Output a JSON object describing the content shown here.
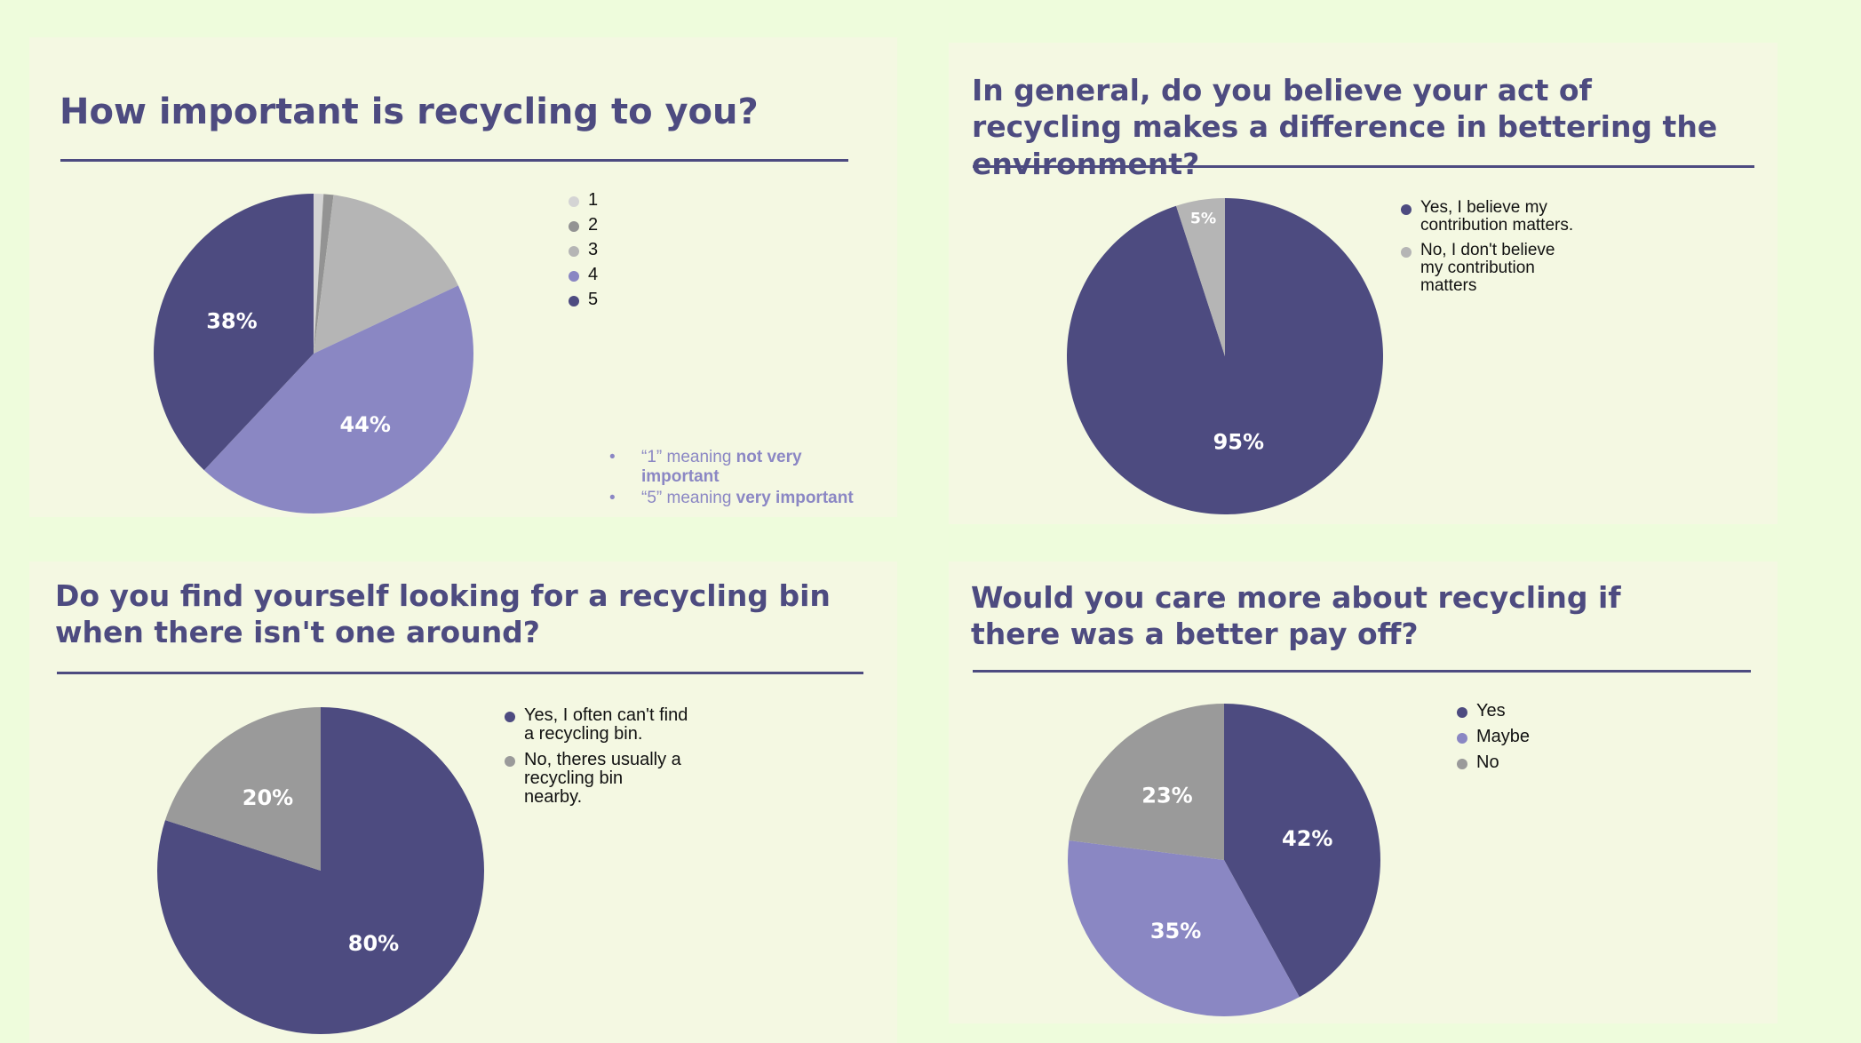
{
  "colors": {
    "dark_purple": "#4d4b80",
    "light_purple": "#8a87c3",
    "gray": "#9a9a9a",
    "light_gray": "#b5b5b5",
    "pale_gray": "#d4d4d4",
    "mid_gray": "#939393",
    "panel_bg": "#f4f8e2",
    "page_bg": "#eefcdc"
  },
  "chart_data": [
    {
      "type": "pie",
      "title": "How important is recycling to you?",
      "categories": [
        "1",
        "2",
        "3",
        "4",
        "5"
      ],
      "values": [
        1,
        1,
        16,
        44,
        38
      ],
      "slice_labels": [
        "",
        "",
        "",
        "44%",
        "38%"
      ],
      "colors": [
        "#d4d4d4",
        "#939393",
        "#b5b5b5",
        "#8a87c3",
        "#4d4b80"
      ],
      "legend": [
        "1",
        "2",
        "3",
        "4",
        "5"
      ],
      "legend_position": "right",
      "notes": [
        {
          "pre": "“1” meaning ",
          "bold": "not very important"
        },
        {
          "pre": "“5” meaning ",
          "bold": "very important"
        }
      ]
    },
    {
      "type": "pie",
      "title": "In general, do you believe your act of recycling makes a difference in bettering the environment?",
      "categories": [
        "Yes, I believe my contribution matters.",
        "No, I don't believe my contribution matters"
      ],
      "values": [
        95,
        5
      ],
      "slice_labels": [
        "95%",
        "5%"
      ],
      "colors": [
        "#4d4b80",
        "#b5b5b5"
      ],
      "legend": [
        "Yes, I believe my\ncontribution matters.",
        "No, I don't believe\nmy contribution\nmatters"
      ],
      "legend_position": "right"
    },
    {
      "type": "pie",
      "title": "Do you find yourself looking for a recycling bin when there isn't one around?",
      "categories": [
        "Yes, I often can't find a recycling bin.",
        "No, theres usually a recycling bin nearby."
      ],
      "values": [
        80,
        20
      ],
      "slice_labels": [
        "80%",
        "20%"
      ],
      "colors": [
        "#4d4b80",
        "#9a9a9a"
      ],
      "legend": [
        "Yes, I often can't find\na recycling bin.",
        "No, theres usually a\nrecycling bin\nnearby."
      ],
      "legend_position": "right"
    },
    {
      "type": "pie",
      "title": "Would you care more about recycling if there was a better pay off?",
      "categories": [
        "Yes",
        "Maybe",
        "No"
      ],
      "values": [
        42,
        35,
        23
      ],
      "slice_labels": [
        "42%",
        "35%",
        "23%"
      ],
      "colors": [
        "#4d4b80",
        "#8a87c3",
        "#9a9a9a"
      ],
      "legend": [
        "Yes",
        "Maybe",
        "No"
      ],
      "legend_position": "right"
    }
  ]
}
